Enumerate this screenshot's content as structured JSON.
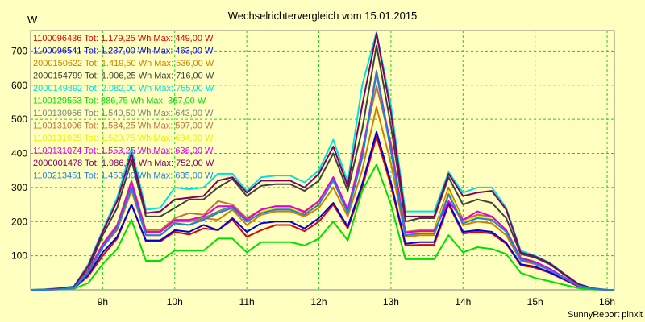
{
  "chart_data": {
    "type": "line",
    "title": "Wechselrichtervergleich vom 15.01.2015",
    "ylabel": "W",
    "xlabel": "",
    "footer": "SunnyReport pinxit",
    "xlim": [
      8.0,
      16.1
    ],
    "ylim": [
      0,
      760
    ],
    "grid": true,
    "legend_position": "top-left",
    "colors": {
      "background": "#FFFFC0",
      "grid": "#22CC22"
    },
    "x_ticks": [
      {
        "value": 9,
        "label": "9h"
      },
      {
        "value": 10,
        "label": "10h"
      },
      {
        "value": 11,
        "label": "11h"
      },
      {
        "value": 12,
        "label": "12h"
      },
      {
        "value": 13,
        "label": "13h"
      },
      {
        "value": 14,
        "label": "14h"
      },
      {
        "value": 15,
        "label": "15h"
      },
      {
        "value": 16,
        "label": "16h"
      }
    ],
    "y_ticks": [
      {
        "value": 100,
        "label": "100"
      },
      {
        "value": 200,
        "label": "200"
      },
      {
        "value": 300,
        "label": "300"
      },
      {
        "value": 400,
        "label": "400"
      },
      {
        "value": 500,
        "label": "500"
      },
      {
        "value": 600,
        "label": "600"
      },
      {
        "value": 700,
        "label": "700"
      }
    ],
    "x": [
      8.0,
      8.2,
      8.4,
      8.6,
      8.8,
      9.0,
      9.2,
      9.4,
      9.6,
      9.8,
      10.0,
      10.2,
      10.4,
      10.6,
      10.8,
      11.0,
      11.2,
      11.4,
      11.6,
      11.8,
      12.0,
      12.2,
      12.4,
      12.6,
      12.8,
      13.0,
      13.2,
      13.4,
      13.6,
      13.8,
      14.0,
      14.2,
      14.4,
      14.6,
      14.8,
      15.0,
      15.2,
      15.4,
      15.6,
      15.8,
      16.0,
      16.1
    ],
    "series": [
      {
        "legend": "1100096436 Tot: 1.179,25 Wh Max: 449,00 W",
        "color": "#E00000",
        "values": [
          0,
          0,
          2,
          5,
          40,
          100,
          150,
          250,
          142,
          142,
          170,
          162,
          180,
          175,
          205,
          155,
          175,
          190,
          190,
          172,
          200,
          250,
          180,
          300,
          449,
          305,
          130,
          132,
          132,
          250,
          165,
          170,
          165,
          135,
          72,
          65,
          50,
          30,
          10,
          2,
          0,
          0
        ]
      },
      {
        "legend": "1100096541 Tot: 1.237,00 Wh Max: 463,00 W",
        "color": "#0000E0",
        "values": [
          0,
          0,
          2,
          5,
          45,
          110,
          155,
          250,
          145,
          145,
          175,
          170,
          190,
          175,
          210,
          170,
          195,
          200,
          200,
          180,
          210,
          255,
          185,
          310,
          463,
          315,
          135,
          140,
          140,
          255,
          170,
          175,
          170,
          138,
          75,
          68,
          52,
          32,
          12,
          3,
          0,
          0
        ]
      },
      {
        "legend": "2000150622 Tot: 1.419,50 Wh Max: 536,00 W",
        "color": "#D08000",
        "values": [
          0,
          0,
          2,
          6,
          50,
          125,
          175,
          290,
          160,
          160,
          195,
          190,
          210,
          205,
          235,
          190,
          220,
          230,
          230,
          215,
          240,
          300,
          215,
          350,
          536,
          370,
          155,
          160,
          160,
          280,
          190,
          200,
          195,
          160,
          85,
          75,
          58,
          35,
          13,
          3,
          0,
          0
        ]
      },
      {
        "legend": "2000154799 Tot: 1.906,25 Wh Max: 716,00 W",
        "color": "#404040",
        "values": [
          0,
          0,
          3,
          8,
          60,
          160,
          240,
          380,
          215,
          215,
          240,
          265,
          265,
          300,
          325,
          275,
          305,
          310,
          310,
          290,
          320,
          400,
          290,
          470,
          716,
          480,
          200,
          210,
          210,
          330,
          250,
          265,
          255,
          210,
          105,
          95,
          75,
          45,
          16,
          4,
          0,
          0
        ]
      },
      {
        "legend": "2000149892 Tot: 2.082,00 Wh Max: 755,00 W",
        "color": "#00E0E0",
        "values": [
          0,
          2,
          5,
          10,
          75,
          175,
          270,
          415,
          235,
          240,
          300,
          295,
          300,
          340,
          340,
          290,
          330,
          335,
          335,
          315,
          350,
          440,
          315,
          600,
          755,
          540,
          230,
          230,
          230,
          345,
          285,
          300,
          300,
          240,
          115,
          100,
          80,
          48,
          18,
          5,
          0,
          0
        ]
      },
      {
        "legend": "1100129553 Tot: 886,75 Wh Max: 367,00 W",
        "color": "#00E000",
        "values": [
          0,
          0,
          1,
          3,
          20,
          75,
          120,
          205,
          85,
          85,
          115,
          115,
          115,
          150,
          150,
          110,
          140,
          140,
          140,
          130,
          150,
          200,
          145,
          290,
          367,
          250,
          90,
          90,
          90,
          160,
          110,
          125,
          120,
          105,
          50,
          35,
          25,
          15,
          5,
          1,
          0,
          0
        ]
      },
      {
        "legend": "1100130966 Tot: 1.540,50 Wh Max: 643,00 W",
        "color": "#808080",
        "values": [
          0,
          0,
          2,
          6,
          50,
          130,
          185,
          315,
          170,
          170,
          200,
          200,
          210,
          230,
          245,
          200,
          230,
          240,
          240,
          225,
          255,
          320,
          230,
          390,
          643,
          410,
          165,
          170,
          170,
          290,
          200,
          215,
          210,
          170,
          90,
          80,
          60,
          36,
          13,
          3,
          0,
          0
        ]
      },
      {
        "legend": "1100131006 Tot: 1.584,25 Wh Max: 597,00 W",
        "color": "#C07040",
        "values": [
          0,
          0,
          2,
          6,
          55,
          135,
          190,
          320,
          175,
          175,
          210,
          225,
          220,
          260,
          250,
          210,
          235,
          245,
          245,
          230,
          260,
          330,
          235,
          410,
          597,
          430,
          170,
          175,
          175,
          300,
          205,
          220,
          215,
          175,
          95,
          82,
          62,
          37,
          14,
          3,
          0,
          0
        ]
      },
      {
        "legend": "1100131025 Tot: 1.520,75 Wh Max: 634,00 W",
        "color": "#F0F000",
        "values": [
          0,
          0,
          2,
          6,
          52,
          130,
          185,
          310,
          168,
          168,
          205,
          205,
          215,
          245,
          245,
          205,
          230,
          240,
          240,
          225,
          255,
          325,
          230,
          395,
          634,
          415,
          165,
          170,
          170,
          290,
          200,
          215,
          210,
          172,
          90,
          80,
          60,
          36,
          13,
          3,
          0,
          0
        ]
      },
      {
        "legend": "1100131074 Tot: 1.553,25 Wh Max: 636,00 W",
        "color": "#E000E0",
        "values": [
          0,
          0,
          2,
          6,
          52,
          132,
          188,
          315,
          170,
          170,
          205,
          205,
          215,
          245,
          245,
          205,
          235,
          245,
          245,
          228,
          260,
          330,
          235,
          400,
          636,
          420,
          168,
          172,
          172,
          260,
          205,
          230,
          215,
          175,
          92,
          82,
          62,
          37,
          14,
          3,
          0,
          0
        ]
      },
      {
        "legend": "2000001478 Tot: 1.986,75 Wh Max: 752,00 W",
        "color": "#800060",
        "values": [
          0,
          1,
          4,
          9,
          70,
          170,
          260,
          400,
          225,
          230,
          265,
          270,
          275,
          320,
          330,
          285,
          320,
          320,
          320,
          300,
          340,
          420,
          305,
          540,
          752,
          520,
          215,
          215,
          215,
          340,
          275,
          285,
          290,
          235,
          110,
          98,
          78,
          47,
          17,
          4,
          0,
          0
        ]
      },
      {
        "legend": "1100213451 Tot: 1.453,00 Wh Max: 635,00 W",
        "color": "#2080E0",
        "values": [
          0,
          0,
          2,
          6,
          50,
          125,
          180,
          300,
          160,
          160,
          195,
          190,
          205,
          225,
          240,
          200,
          225,
          235,
          235,
          220,
          250,
          320,
          225,
          385,
          635,
          405,
          160,
          165,
          165,
          280,
          195,
          210,
          205,
          170,
          88,
          78,
          58,
          35,
          12,
          3,
          0,
          0
        ]
      }
    ]
  }
}
